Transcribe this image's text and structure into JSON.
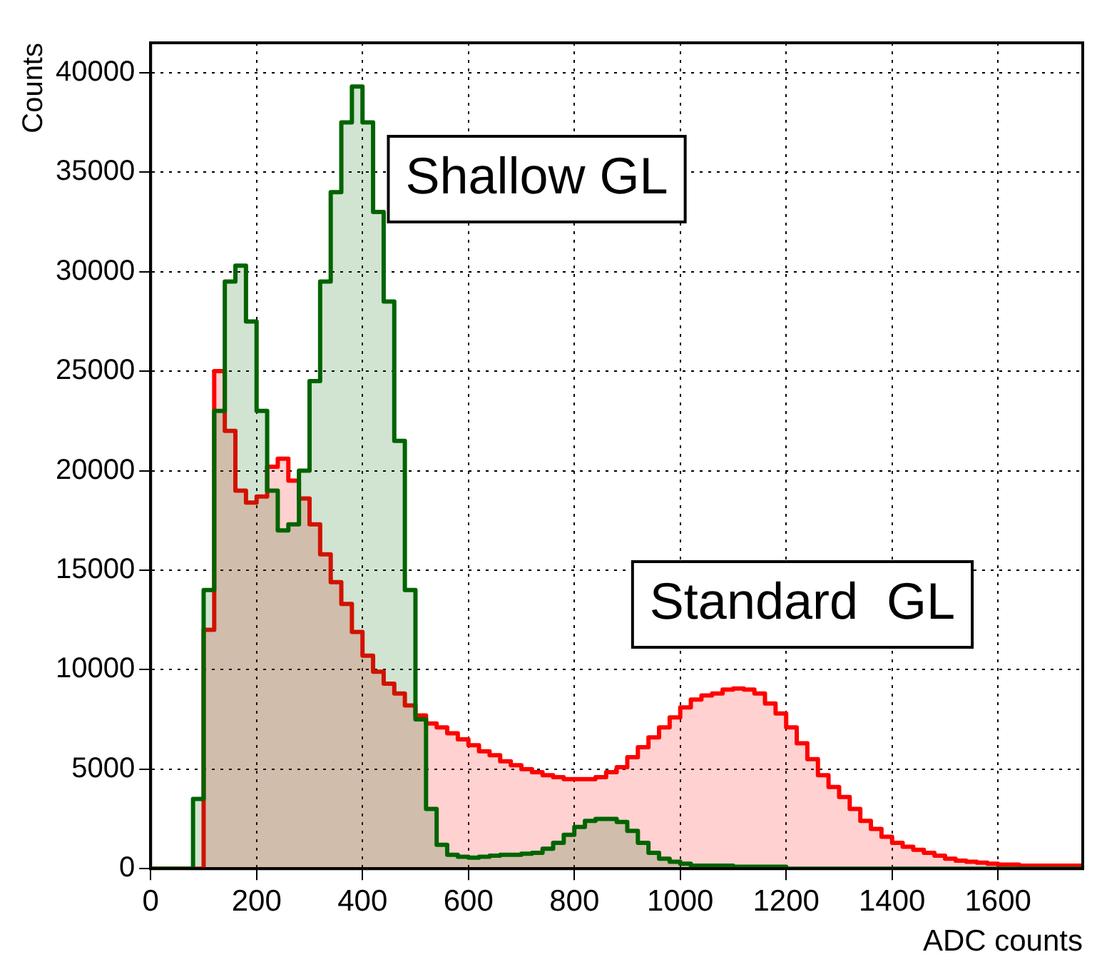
{
  "chart_data": {
    "type": "histogram",
    "xlabel": "ADC counts",
    "ylabel": "Counts",
    "bins": [
      0,
      20,
      40,
      60,
      80,
      100,
      120,
      140,
      160,
      180,
      200,
      220,
      240,
      260,
      280,
      300,
      320,
      340,
      360,
      380,
      400,
      420,
      440,
      460,
      480,
      500,
      520,
      540,
      560,
      580,
      600,
      620,
      640,
      660,
      680,
      700,
      720,
      740,
      760,
      780,
      800,
      820,
      840,
      860,
      880,
      900,
      920,
      940,
      960,
      980,
      1000,
      1020,
      1040,
      1060,
      1080,
      1100,
      1120,
      1140,
      1160,
      1180,
      1200,
      1220,
      1240,
      1260,
      1280,
      1300,
      1320,
      1340,
      1360,
      1380,
      1400,
      1420,
      1440,
      1460,
      1480,
      1500,
      1520,
      1540,
      1560,
      1580,
      1600,
      1620,
      1640,
      1660,
      1680,
      1700,
      1720,
      1740,
      1760
    ],
    "series": [
      {
        "name": "Shallow GL",
        "color": "#006400",
        "values": [
          0,
          0,
          0,
          0,
          3500,
          14000,
          23000,
          29500,
          30300,
          27500,
          23000,
          19000,
          17000,
          17300,
          20000,
          24500,
          29500,
          34000,
          37500,
          39300,
          37500,
          33000,
          28500,
          21500,
          14000,
          7500,
          3000,
          1200,
          700,
          600,
          550,
          600,
          650,
          700,
          700,
          750,
          800,
          1000,
          1300,
          1700,
          2100,
          2400,
          2500,
          2500,
          2350,
          1900,
          1300,
          800,
          500,
          350,
          250,
          150,
          150,
          150,
          150,
          100,
          100,
          100,
          100,
          100,
          0,
          0,
          0,
          0,
          0,
          0,
          0,
          0,
          0,
          0,
          0,
          0,
          0,
          0,
          0,
          0,
          0,
          0,
          0,
          0,
          0,
          0,
          0,
          0,
          0,
          0,
          0,
          0
        ]
      },
      {
        "name": "Standard  GL",
        "color": "#ff0000",
        "values": [
          0,
          0,
          0,
          0,
          0,
          12000,
          25000,
          22000,
          19000,
          18400,
          18700,
          20200,
          20600,
          19500,
          18600,
          17300,
          15800,
          14400,
          13300,
          11900,
          10700,
          9900,
          9300,
          8800,
          8200,
          7700,
          7300,
          7100,
          6800,
          6500,
          6200,
          5900,
          5700,
          5400,
          5200,
          5000,
          4850,
          4700,
          4600,
          4500,
          4500,
          4500,
          4600,
          4850,
          5100,
          5600,
          6100,
          6600,
          7100,
          7600,
          8100,
          8500,
          8700,
          8800,
          9000,
          9050,
          9000,
          8800,
          8300,
          7800,
          7100,
          6300,
          5500,
          4700,
          4100,
          3600,
          3000,
          2400,
          2000,
          1600,
          1300,
          1100,
          950,
          800,
          650,
          500,
          400,
          350,
          300,
          250,
          200,
          200,
          150,
          150,
          150,
          150,
          150,
          150
        ]
      }
    ],
    "xlim": [
      0,
      1760
    ],
    "xticks": [
      0,
      200,
      400,
      600,
      800,
      1000,
      1200,
      1400,
      1600
    ],
    "ylim": [
      0,
      41500
    ],
    "yticks": [
      0,
      5000,
      10000,
      15000,
      20000,
      25000,
      30000,
      35000,
      40000
    ],
    "grid": true
  }
}
